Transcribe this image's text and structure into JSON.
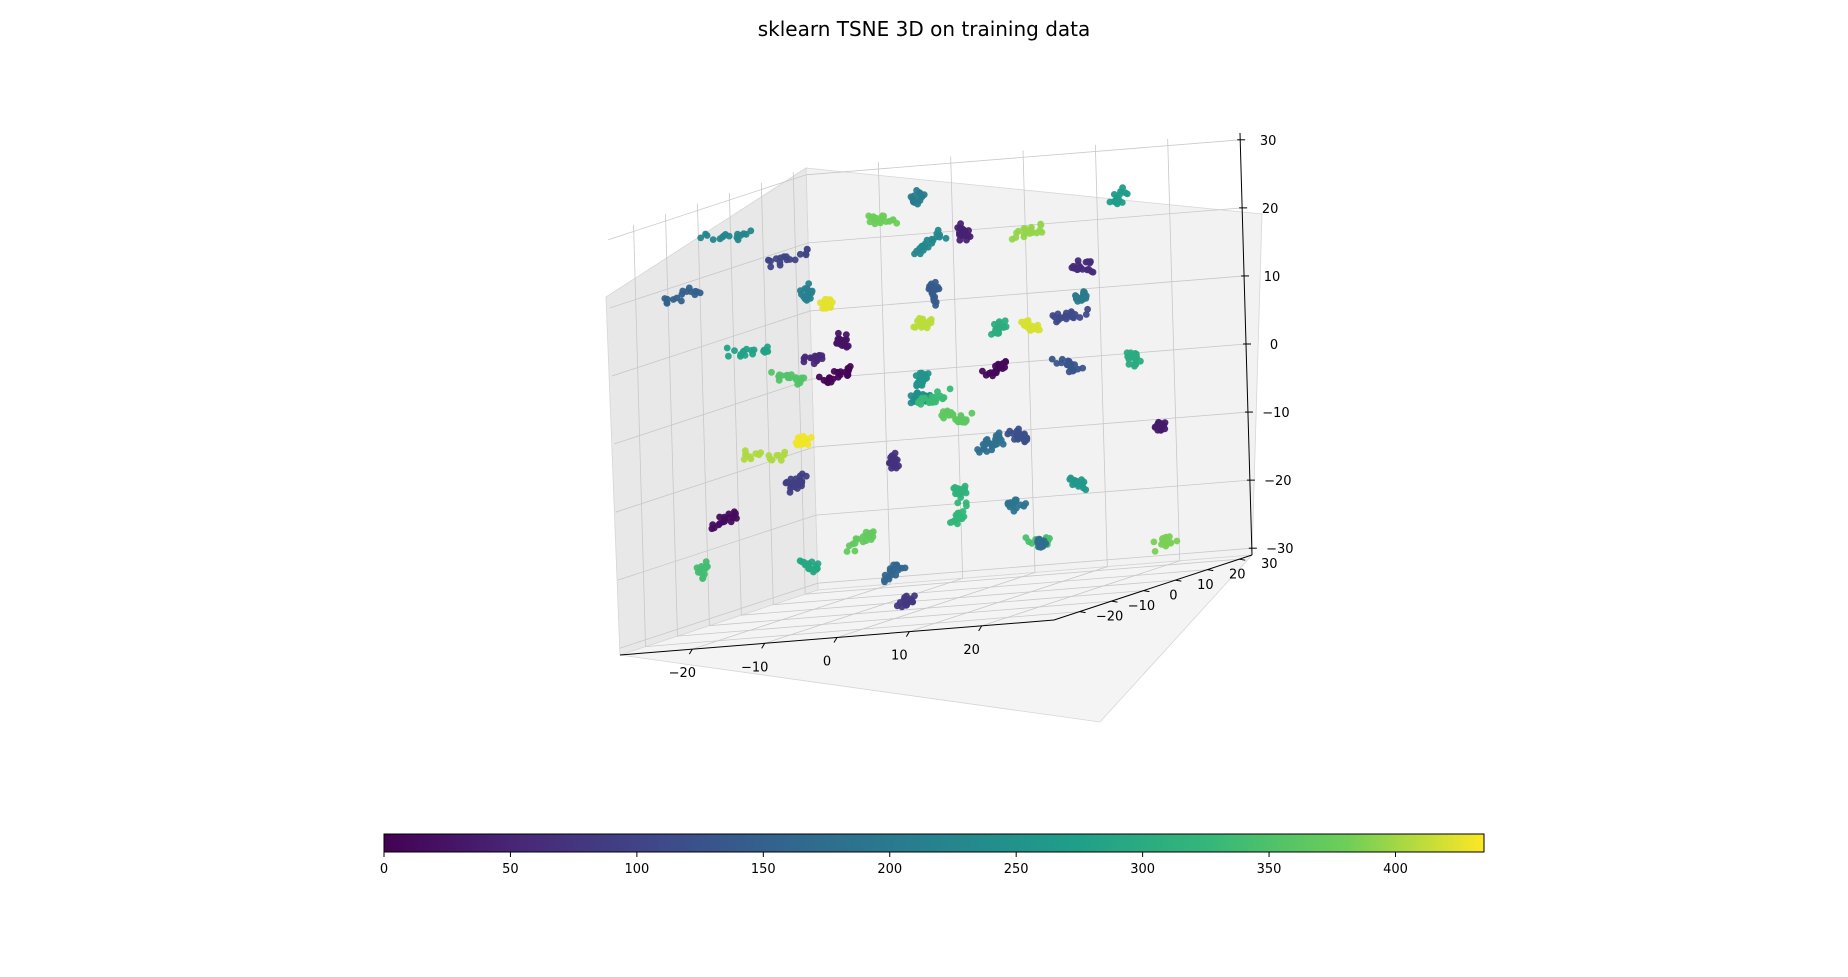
{
  "chart_data": {
    "type": "scatter",
    "projection": "3d",
    "title": "sklearn TSNE 3D on training data",
    "x_ticks": [
      "−20",
      "−10",
      "0",
      "10",
      "20"
    ],
    "y_ticks": [
      "−20",
      "−10",
      "0",
      "10",
      "20",
      "30"
    ],
    "z_ticks": [
      "−30",
      "−20",
      "−10",
      "0",
      "10",
      "20",
      "30"
    ],
    "x_tick_values": [
      -20,
      -10,
      0,
      10,
      20
    ],
    "y_tick_values": [
      -20,
      -10,
      0,
      10,
      20,
      30
    ],
    "z_tick_values": [
      -30,
      -20,
      -10,
      0,
      10,
      20,
      30
    ],
    "xlim": [
      -30,
      30
    ],
    "ylim": [
      -28,
      34
    ],
    "zlim": [
      -31,
      31
    ],
    "colormap": "viridis",
    "grid": true,
    "colorbar": {
      "orientation": "horizontal",
      "range": [
        0,
        435
      ],
      "ticks": [
        "0",
        "50",
        "100",
        "150",
        "200",
        "250",
        "300",
        "350",
        "400"
      ],
      "tick_values": [
        0,
        50,
        100,
        150,
        200,
        250,
        300,
        350,
        400
      ]
    },
    "clusters": [
      {
        "x": -12,
        "y": 2,
        "z": 4,
        "c": 5,
        "n": 22
      },
      {
        "x": 5,
        "y": -10,
        "z": 12,
        "c": 410,
        "n": 20
      },
      {
        "x": -20,
        "y": 8,
        "z": -6,
        "c": 430,
        "n": 24
      },
      {
        "x": 14,
        "y": 20,
        "z": 15,
        "c": 60,
        "n": 18
      },
      {
        "x": -5,
        "y": 15,
        "z": -2,
        "c": 330,
        "n": 22
      },
      {
        "x": 8,
        "y": 4,
        "z": -8,
        "c": 180,
        "n": 26
      },
      {
        "x": -18,
        "y": -12,
        "z": 10,
        "c": 280,
        "n": 18
      },
      {
        "x": 20,
        "y": -15,
        "z": -5,
        "c": 120,
        "n": 20
      },
      {
        "x": 0,
        "y": -20,
        "z": -18,
        "c": 370,
        "n": 18
      },
      {
        "x": -8,
        "y": 22,
        "z": 20,
        "c": 230,
        "n": 20
      },
      {
        "x": 12,
        "y": 8,
        "z": 22,
        "c": 395,
        "n": 18
      },
      {
        "x": -25,
        "y": -5,
        "z": -15,
        "c": 15,
        "n": 18
      },
      {
        "x": 25,
        "y": 10,
        "z": 2,
        "c": 300,
        "n": 20
      },
      {
        "x": -3,
        "y": -3,
        "z": -25,
        "c": 160,
        "n": 18
      },
      {
        "x": 18,
        "y": -5,
        "z": -22,
        "c": 345,
        "n": 18
      },
      {
        "x": -15,
        "y": 25,
        "z": -12,
        "c": 70,
        "n": 18
      },
      {
        "x": 3,
        "y": 28,
        "z": 6,
        "c": 420,
        "n": 18
      },
      {
        "x": -10,
        "y": -18,
        "z": 24,
        "c": 100,
        "n": 18
      },
      {
        "x": 10,
        "y": -22,
        "z": 5,
        "c": 250,
        "n": 20
      },
      {
        "x": -22,
        "y": 15,
        "z": 15,
        "c": 215,
        "n": 18
      },
      {
        "x": 22,
        "y": 25,
        "z": -10,
        "c": 35,
        "n": 18
      },
      {
        "x": -2,
        "y": 10,
        "z": 14,
        "c": 140,
        "n": 22
      },
      {
        "x": 6,
        "y": -2,
        "z": -14,
        "c": 315,
        "n": 22
      },
      {
        "x": -14,
        "y": -8,
        "z": -10,
        "c": 90,
        "n": 20
      },
      {
        "x": 15,
        "y": 14,
        "z": -16,
        "c": 260,
        "n": 18
      },
      {
        "x": -6,
        "y": 3,
        "z": 26,
        "c": 380,
        "n": 18
      },
      {
        "x": 27,
        "y": -10,
        "z": 14,
        "c": 200,
        "n": 18
      },
      {
        "x": -27,
        "y": 20,
        "z": 2,
        "c": 355,
        "n": 18
      },
      {
        "x": 0,
        "y": 0,
        "z": 0,
        "c": 240,
        "n": 24
      },
      {
        "x": 12,
        "y": -12,
        "z": 25,
        "c": 45,
        "n": 18
      },
      {
        "x": -18,
        "y": 5,
        "z": -24,
        "c": 290,
        "n": 18
      },
      {
        "x": 8,
        "y": 18,
        "z": -25,
        "c": 175,
        "n": 18
      },
      {
        "x": -10,
        "y": -25,
        "z": -4,
        "c": 405,
        "n": 18
      },
      {
        "x": 20,
        "y": 2,
        "z": 10,
        "c": 110,
        "n": 20
      },
      {
        "x": -4,
        "y": 20,
        "z": -20,
        "c": 325,
        "n": 18
      },
      {
        "x": 4,
        "y": -15,
        "z": -28,
        "c": 80,
        "n": 16
      },
      {
        "x": -24,
        "y": -18,
        "z": 20,
        "c": 150,
        "n": 16
      },
      {
        "x": 16,
        "y": 28,
        "z": 24,
        "c": 270,
        "n": 16
      },
      {
        "x": -16,
        "y": 12,
        "z": 8,
        "c": 25,
        "n": 20
      },
      {
        "x": 2,
        "y": 6,
        "z": -4,
        "c": 365,
        "n": 22
      },
      {
        "x": 24,
        "y": -25,
        "z": -14,
        "c": 190,
        "n": 16
      },
      {
        "x": -8,
        "y": -10,
        "z": 16,
        "c": 425,
        "n": 20
      },
      {
        "x": 10,
        "y": 24,
        "z": 0,
        "c": 130,
        "n": 18
      },
      {
        "x": -20,
        "y": -24,
        "z": -20,
        "c": 340,
        "n": 16
      },
      {
        "x": 14,
        "y": -8,
        "z": 4,
        "c": 10,
        "n": 20
      },
      {
        "x": -12,
        "y": 28,
        "z": 26,
        "c": 205,
        "n": 16
      },
      {
        "x": 6,
        "y": 12,
        "z": 8,
        "c": 305,
        "n": 20
      },
      {
        "x": -2,
        "y": -28,
        "z": 10,
        "c": 55,
        "n": 16
      },
      {
        "x": 26,
        "y": 16,
        "z": -26,
        "c": 385,
        "n": 16
      },
      {
        "x": -26,
        "y": 0,
        "z": 26,
        "c": 225,
        "n": 16
      }
    ]
  }
}
